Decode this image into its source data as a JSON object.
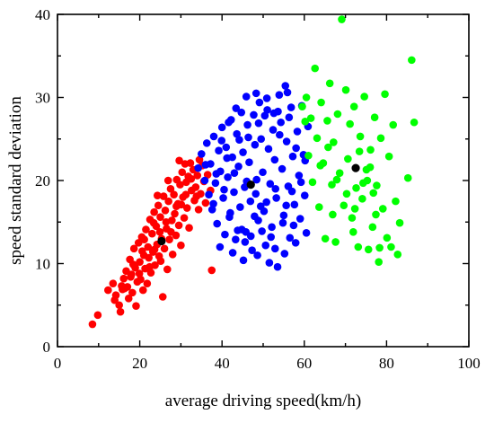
{
  "chart_data": {
    "type": "scatter",
    "title": "",
    "xlabel": "average driving speed(km/h)",
    "ylabel": "speed standard deviation",
    "xlim": [
      0,
      100
    ],
    "ylim": [
      0,
      40
    ],
    "xticks": [
      "0",
      "20",
      "40",
      "60",
      "80",
      "100"
    ],
    "yticks": [
      "0",
      "10",
      "20",
      "30",
      "40"
    ],
    "grid": false,
    "legend": "none",
    "series": [
      {
        "color": "#ff0000",
        "points": [
          [
            8.5,
            2.7
          ],
          [
            9.8,
            3.8
          ],
          [
            12.3,
            6.8
          ],
          [
            13.5,
            7.6
          ],
          [
            14.2,
            6.2
          ],
          [
            15.0,
            5.0
          ],
          [
            15.3,
            4.2
          ],
          [
            15.8,
            6.9
          ],
          [
            16.1,
            8.2
          ],
          [
            16.7,
            9.1
          ],
          [
            17.0,
            7.2
          ],
          [
            17.3,
            5.8
          ],
          [
            17.6,
            10.5
          ],
          [
            18.0,
            8.7
          ],
          [
            18.2,
            6.5
          ],
          [
            18.6,
            11.8
          ],
          [
            18.9,
            9.5
          ],
          [
            19.1,
            4.9
          ],
          [
            19.4,
            7.8
          ],
          [
            19.7,
            12.5
          ],
          [
            20.0,
            10.2
          ],
          [
            20.2,
            8.1
          ],
          [
            20.5,
            13.2
          ],
          [
            20.8,
            6.8
          ],
          [
            21.0,
            11.0
          ],
          [
            21.3,
            9.4
          ],
          [
            21.5,
            14.1
          ],
          [
            21.8,
            7.6
          ],
          [
            22.0,
            12.0
          ],
          [
            22.2,
            10.7
          ],
          [
            22.5,
            15.3
          ],
          [
            22.7,
            8.9
          ],
          [
            23.0,
            13.6
          ],
          [
            23.2,
            11.4
          ],
          [
            23.5,
            16.2
          ],
          [
            23.7,
            9.8
          ],
          [
            24.0,
            14.5
          ],
          [
            24.2,
            12.3
          ],
          [
            24.5,
            17.0
          ],
          [
            24.7,
            10.9
          ],
          [
            25.0,
            15.6
          ],
          [
            25.3,
            13.0
          ],
          [
            25.6,
            6.0
          ],
          [
            25.8,
            18.1
          ],
          [
            26.0,
            11.8
          ],
          [
            26.2,
            16.4
          ],
          [
            26.5,
            14.2
          ],
          [
            26.7,
            9.3
          ],
          [
            27.0,
            17.5
          ],
          [
            27.2,
            12.9
          ],
          [
            27.5,
            19.0
          ],
          [
            27.8,
            15.2
          ],
          [
            28.0,
            11.1
          ],
          [
            28.3,
            18.3
          ],
          [
            28.5,
            16.0
          ],
          [
            28.8,
            13.4
          ],
          [
            29.0,
            20.1
          ],
          [
            29.3,
            17.2
          ],
          [
            29.5,
            14.6
          ],
          [
            29.8,
            19.5
          ],
          [
            30.0,
            12.2
          ],
          [
            30.3,
            21.0
          ],
          [
            30.5,
            18.0
          ],
          [
            30.8,
            15.5
          ],
          [
            31.0,
            22.0
          ],
          [
            31.3,
            19.8
          ],
          [
            31.5,
            16.7
          ],
          [
            31.8,
            20.5
          ],
          [
            32.0,
            14.3
          ],
          [
            32.3,
            22.1
          ],
          [
            32.6,
            18.8
          ],
          [
            33.0,
            21.3
          ],
          [
            33.3,
            17.6
          ],
          [
            33.6,
            19.2
          ],
          [
            34.0,
            20.6
          ],
          [
            34.3,
            16.5
          ],
          [
            34.8,
            18.4
          ],
          [
            35.2,
            21.8
          ],
          [
            35.6,
            19.9
          ],
          [
            36.0,
            17.3
          ],
          [
            16.3,
            7.0
          ],
          [
            18.4,
            9.9
          ],
          [
            19.9,
            8.8
          ],
          [
            21.1,
            12.9
          ],
          [
            22.4,
            9.6
          ],
          [
            23.6,
            11.7
          ],
          [
            24.9,
            13.8
          ],
          [
            26.4,
            15.0
          ],
          [
            27.6,
            13.8
          ],
          [
            28.9,
            16.9
          ],
          [
            30.1,
            17.1
          ],
          [
            31.2,
            18.3
          ],
          [
            32.5,
            20.2
          ],
          [
            33.8,
            18.1
          ],
          [
            25.1,
            10.3
          ],
          [
            23.4,
            14.9
          ],
          [
            20.6,
            11.5
          ],
          [
            17.8,
            8.4
          ],
          [
            15.6,
            7.3
          ],
          [
            13.9,
            5.6
          ],
          [
            34.5,
            22.5
          ],
          [
            36.5,
            20.7
          ],
          [
            37.2,
            18.8
          ],
          [
            29.6,
            22.4
          ],
          [
            26.9,
            20.0
          ],
          [
            24.3,
            18.2
          ],
          [
            37.5,
            9.2
          ]
        ]
      },
      {
        "color": "#0000ff",
        "points": [
          [
            34.2,
            21.5
          ],
          [
            35.0,
            23.2
          ],
          [
            35.8,
            20.0
          ],
          [
            36.3,
            24.5
          ],
          [
            36.8,
            18.3
          ],
          [
            37.2,
            22.0
          ],
          [
            37.6,
            16.5
          ],
          [
            38.0,
            25.3
          ],
          [
            38.4,
            19.7
          ],
          [
            38.8,
            14.8
          ],
          [
            39.2,
            23.6
          ],
          [
            39.6,
            21.1
          ],
          [
            40.0,
            26.4
          ],
          [
            40.3,
            17.9
          ],
          [
            40.7,
            13.5
          ],
          [
            41.0,
            24.0
          ],
          [
            41.4,
            20.4
          ],
          [
            41.8,
            15.6
          ],
          [
            42.2,
            27.3
          ],
          [
            42.5,
            22.8
          ],
          [
            42.9,
            18.6
          ],
          [
            43.3,
            12.9
          ],
          [
            43.6,
            25.6
          ],
          [
            44.0,
            21.7
          ],
          [
            44.4,
            16.8
          ],
          [
            44.7,
            28.2
          ],
          [
            45.1,
            23.4
          ],
          [
            45.5,
            19.2
          ],
          [
            45.8,
            13.8
          ],
          [
            46.2,
            26.7
          ],
          [
            46.6,
            22.2
          ],
          [
            46.9,
            17.5
          ],
          [
            47.3,
            11.6
          ],
          [
            47.7,
            27.9
          ],
          [
            48.0,
            24.3
          ],
          [
            48.4,
            20.1
          ],
          [
            48.8,
            15.2
          ],
          [
            49.1,
            29.4
          ],
          [
            49.5,
            25.0
          ],
          [
            49.9,
            21.0
          ],
          [
            50.2,
            16.3
          ],
          [
            50.6,
            12.2
          ],
          [
            51.0,
            28.5
          ],
          [
            51.3,
            23.8
          ],
          [
            51.7,
            19.6
          ],
          [
            52.1,
            14.4
          ],
          [
            52.4,
            26.1
          ],
          [
            52.8,
            22.5
          ],
          [
            53.2,
            17.9
          ],
          [
            53.5,
            9.6
          ],
          [
            53.9,
            30.3
          ],
          [
            54.3,
            27.0
          ],
          [
            54.6,
            21.4
          ],
          [
            55.0,
            15.8
          ],
          [
            55.4,
            31.4
          ],
          [
            55.7,
            24.7
          ],
          [
            56.1,
            19.3
          ],
          [
            56.5,
            13.1
          ],
          [
            56.8,
            28.8
          ],
          [
            57.2,
            22.9
          ],
          [
            57.6,
            17.1
          ],
          [
            57.9,
            12.5
          ],
          [
            58.3,
            25.9
          ],
          [
            58.7,
            20.6
          ],
          [
            59.0,
            15.4
          ],
          [
            59.4,
            29.0
          ],
          [
            59.8,
            23.1
          ],
          [
            60.1,
            18.2
          ],
          [
            60.5,
            13.7
          ],
          [
            60.9,
            26.5
          ],
          [
            39.5,
            12.0
          ],
          [
            42.6,
            11.3
          ],
          [
            45.2,
            10.4
          ],
          [
            48.6,
            11.0
          ],
          [
            51.5,
            10.1
          ],
          [
            44.8,
            14.1
          ],
          [
            47.0,
            13.3
          ],
          [
            49.7,
            13.9
          ],
          [
            52.9,
            11.8
          ],
          [
            55.2,
            11.2
          ],
          [
            43.0,
            20.9
          ],
          [
            46.0,
            19.9
          ],
          [
            48.2,
            18.4
          ],
          [
            50.8,
            17.4
          ],
          [
            53.0,
            19.0
          ],
          [
            55.6,
            17.0
          ],
          [
            57.4,
            14.6
          ],
          [
            41.2,
            22.7
          ],
          [
            44.2,
            24.9
          ],
          [
            46.4,
            25.2
          ],
          [
            48.9,
            26.9
          ],
          [
            50.4,
            27.8
          ],
          [
            52.6,
            28.1
          ],
          [
            54.0,
            25.5
          ],
          [
            56.3,
            27.6
          ],
          [
            58.0,
            23.9
          ],
          [
            38.6,
            20.8
          ],
          [
            40.5,
            18.9
          ],
          [
            42.0,
            16.1
          ],
          [
            43.8,
            14.0
          ],
          [
            45.6,
            12.6
          ],
          [
            47.9,
            15.7
          ],
          [
            49.4,
            16.9
          ],
          [
            51.9,
            13.2
          ],
          [
            54.8,
            14.9
          ],
          [
            57.0,
            18.7
          ],
          [
            59.2,
            19.8
          ],
          [
            60.2,
            22.4
          ],
          [
            36.0,
            21.9
          ],
          [
            37.9,
            17.2
          ],
          [
            39.9,
            24.8
          ],
          [
            41.6,
            27.0
          ],
          [
            43.4,
            28.7
          ],
          [
            45.9,
            30.1
          ],
          [
            48.3,
            30.5
          ],
          [
            50.9,
            29.9
          ],
          [
            53.6,
            28.3
          ],
          [
            55.9,
            30.6
          ]
        ]
      },
      {
        "color": "#00ff00",
        "points": [
          [
            59.5,
            28.9
          ],
          [
            60.5,
            30.0
          ],
          [
            61.0,
            23.0
          ],
          [
            61.6,
            27.5
          ],
          [
            62.0,
            19.8
          ],
          [
            62.6,
            33.5
          ],
          [
            63.1,
            25.1
          ],
          [
            63.6,
            16.8
          ],
          [
            64.1,
            29.4
          ],
          [
            64.6,
            22.1
          ],
          [
            65.1,
            13.0
          ],
          [
            65.6,
            27.2
          ],
          [
            66.2,
            31.7
          ],
          [
            66.7,
            19.5
          ],
          [
            67.1,
            24.6
          ],
          [
            67.6,
            12.6
          ],
          [
            68.1,
            28.0
          ],
          [
            68.6,
            20.9
          ],
          [
            69.1,
            39.4
          ],
          [
            69.6,
            17.0
          ],
          [
            70.1,
            30.9
          ],
          [
            70.6,
            22.6
          ],
          [
            71.1,
            26.8
          ],
          [
            71.6,
            15.5
          ],
          [
            72.1,
            28.9
          ],
          [
            72.6,
            19.1
          ],
          [
            73.1,
            12.0
          ],
          [
            73.6,
            25.3
          ],
          [
            74.1,
            17.8
          ],
          [
            74.6,
            30.1
          ],
          [
            75.1,
            21.3
          ],
          [
            75.6,
            11.7
          ],
          [
            76.1,
            23.7
          ],
          [
            76.6,
            14.4
          ],
          [
            77.1,
            27.6
          ],
          [
            77.6,
            19.4
          ],
          [
            78.1,
            10.2
          ],
          [
            78.6,
            25.1
          ],
          [
            79.1,
            16.6
          ],
          [
            79.6,
            30.4
          ],
          [
            80.1,
            13.1
          ],
          [
            80.6,
            22.9
          ],
          [
            81.1,
            12.0
          ],
          [
            81.6,
            26.7
          ],
          [
            82.2,
            17.5
          ],
          [
            82.7,
            11.1
          ],
          [
            83.2,
            14.9
          ],
          [
            85.2,
            20.3
          ],
          [
            86.1,
            34.5
          ],
          [
            86.7,
            27.0
          ],
          [
            75.3,
            20.0
          ],
          [
            76.0,
            21.6
          ],
          [
            76.8,
            18.5
          ],
          [
            77.4,
            15.9
          ],
          [
            78.3,
            11.9
          ],
          [
            74.3,
            19.7
          ],
          [
            73.4,
            23.5
          ],
          [
            72.3,
            16.6
          ],
          [
            63.9,
            21.8
          ],
          [
            65.8,
            24.0
          ],
          [
            67.9,
            20.1
          ],
          [
            70.3,
            18.4
          ],
          [
            71.9,
            13.8
          ],
          [
            66.9,
            15.9
          ],
          [
            60.2,
            27.1
          ]
        ]
      }
    ],
    "centroids": {
      "color": "#000000",
      "points": [
        [
          25.3,
          12.7
        ],
        [
          47.0,
          19.5
        ],
        [
          72.5,
          21.5
        ]
      ]
    }
  }
}
